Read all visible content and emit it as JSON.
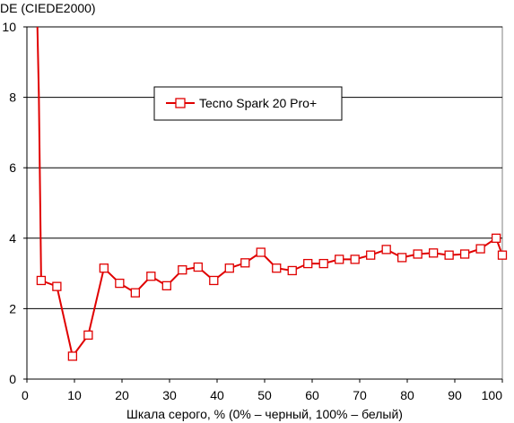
{
  "chart_data": {
    "type": "line",
    "title": "",
    "ylabel": "DE (CIEDE2000)",
    "xlabel": "Шкала серого, % (0% – черный, 100% – белый)",
    "xlim": [
      0,
      100
    ],
    "ylim": [
      0,
      10
    ],
    "x_ticks": [
      "0",
      "10",
      "20",
      "30",
      "40",
      "50",
      "60",
      "70",
      "80",
      "90",
      "100"
    ],
    "y_ticks": [
      "0",
      "2",
      "4",
      "6",
      "8",
      "10"
    ],
    "grid": "horizontal",
    "legend_position": "upper-center",
    "colors": {
      "series": "#e00000",
      "grid": "#000000"
    },
    "series": [
      {
        "name": "Tecno Spark 20 Pro+",
        "marker": "square",
        "x": [
          2.2,
          2.5,
          3.0,
          6.3,
          9.6,
          12.9,
          16.2,
          19.5,
          22.8,
          26.1,
          29.4,
          32.7,
          36.0,
          39.3,
          42.6,
          45.9,
          49.2,
          52.5,
          55.8,
          59.1,
          62.4,
          65.7,
          69.0,
          72.3,
          75.6,
          78.9,
          82.2,
          85.5,
          88.8,
          92.1,
          95.4,
          98.7,
          100
        ],
        "y": [
          10.0,
          8.1,
          2.8,
          2.63,
          0.65,
          1.25,
          3.15,
          2.72,
          2.45,
          2.92,
          2.65,
          3.1,
          3.18,
          2.8,
          3.15,
          3.3,
          3.6,
          3.15,
          3.08,
          3.28,
          3.28,
          3.4,
          3.4,
          3.52,
          3.68,
          3.45,
          3.55,
          3.58,
          3.52,
          3.55,
          3.7,
          4.0,
          3.52
        ],
        "markers_shown": [
          false,
          false,
          true,
          true,
          true,
          true,
          true,
          true,
          true,
          true,
          true,
          true,
          true,
          true,
          true,
          true,
          true,
          true,
          true,
          true,
          true,
          true,
          true,
          true,
          true,
          true,
          true,
          true,
          true,
          true,
          true,
          true,
          true
        ]
      }
    ]
  }
}
